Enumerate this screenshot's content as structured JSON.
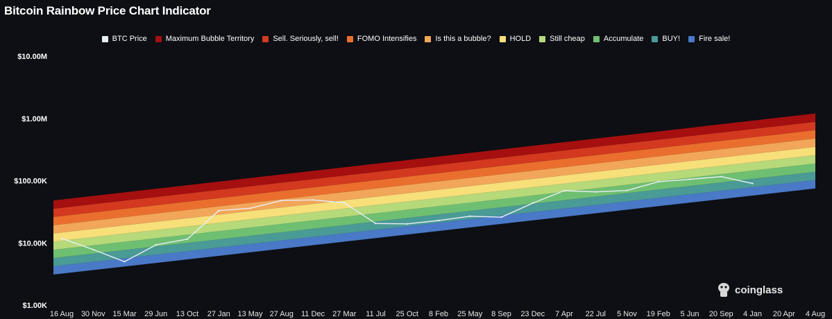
{
  "title": "Bitcoin Rainbow Price Chart Indicator",
  "watermark": "coinglass",
  "legend": [
    {
      "label": "BTC Price",
      "color": "#e8eef6"
    },
    {
      "label": "Maximum Bubble Territory",
      "color": "#a50f0f"
    },
    {
      "label": "Sell. Seriously, sell!",
      "color": "#d2391f"
    },
    {
      "label": "FOMO Intensifies",
      "color": "#ea6f2e"
    },
    {
      "label": "Is this a bubble?",
      "color": "#f2a65a"
    },
    {
      "label": "HOLD",
      "color": "#f7df7a"
    },
    {
      "label": "Still cheap",
      "color": "#b6d97a"
    },
    {
      "label": "Accumulate",
      "color": "#6fbf72"
    },
    {
      "label": "BUY!",
      "color": "#4a9a96"
    },
    {
      "label": "Fire sale!",
      "color": "#4a79c7"
    }
  ],
  "chart_data": {
    "type": "area",
    "title": "Bitcoin Rainbow Price Chart Indicator",
    "y_scale": "log",
    "ylim": [
      1000,
      10000000
    ],
    "y_ticks": [
      {
        "value": 10000000,
        "label": "$10.00M"
      },
      {
        "value": 1000000,
        "label": "$1.00M"
      },
      {
        "value": 100000,
        "label": "$100.00K"
      },
      {
        "value": 10000,
        "label": "$10.00K"
      },
      {
        "value": 1000,
        "label": "$1.00K"
      }
    ],
    "x_ticks": [
      "16 Aug",
      "30 Nov",
      "15 Mar",
      "29 Jun",
      "13 Oct",
      "27 Jan",
      "13 May",
      "27 Aug",
      "11 Dec",
      "27 Mar",
      "11 Jul",
      "25 Oct",
      "8 Feb",
      "25 May",
      "8 Sep",
      "23 Dec",
      "7 Apr",
      "22 Jul",
      "5 Nov",
      "19 Feb",
      "5 Jun",
      "20 Sep",
      "4 Jan",
      "20 Apr",
      "4 Aug"
    ],
    "bands": {
      "x_ticks": [
        "16 Aug",
        "4 Aug"
      ],
      "bottom_edge": [
        3100,
        75000
      ],
      "top_edge": [
        48000,
        1200000
      ],
      "count": 9
    },
    "series": [
      {
        "name": "BTC Price",
        "color": "#e8eef6",
        "points": [
          [
            "16 Aug",
            11800
          ],
          [
            "30 Nov",
            7800
          ],
          [
            "15 Mar",
            5000
          ],
          [
            "29 Jun",
            9300
          ],
          [
            "13 Oct",
            11500
          ],
          [
            "27 Jan",
            33000
          ],
          [
            "13 May",
            36000
          ],
          [
            "27 Aug",
            48000
          ],
          [
            "11 Dec",
            49000
          ],
          [
            "27 Mar",
            44000
          ],
          [
            "11 Jul",
            20500
          ],
          [
            "25 Oct",
            20200
          ],
          [
            "8 Feb",
            22900
          ],
          [
            "25 May",
            26800
          ],
          [
            "8 Sep",
            25900
          ],
          [
            "23 Dec",
            43600
          ],
          [
            "7 Apr",
            69000
          ],
          [
            "22 Jul",
            66000
          ],
          [
            "5 Nov",
            69500
          ],
          [
            "19 Feb",
            96000
          ],
          [
            "5 Jun",
            105000
          ],
          [
            "20 Sep",
            116000
          ],
          [
            "4 Jan",
            90000
          ]
        ]
      }
    ],
    "grid": false,
    "legend_position": "top-center"
  }
}
